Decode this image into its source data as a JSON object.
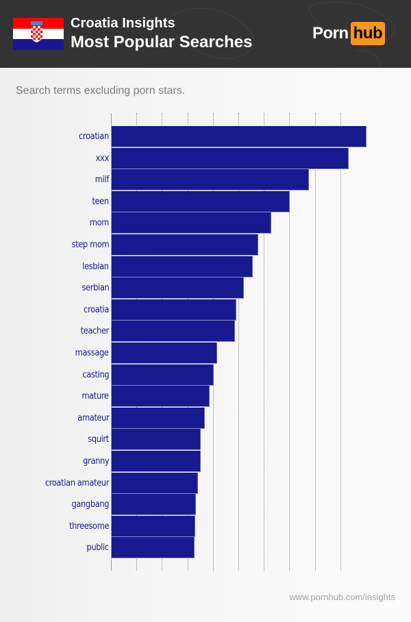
{
  "header": {
    "title_line1": "Croatia Insights",
    "title_line2": "Most Popular Searches",
    "flag_icon": "croatia-flag",
    "logo": {
      "porn": "Porn",
      "hub": "hub",
      "accent_color": "#f7971c"
    }
  },
  "subtitle": "Search terms excluding porn stars.",
  "footer": {
    "url": "www.pornhub.com/insights"
  },
  "colors": {
    "bar": "#18188f",
    "label": "#1a1a8c",
    "header_bg": "#333333"
  },
  "chart_data": {
    "type": "bar",
    "orientation": "horizontal",
    "title": "Most Popular Searches",
    "subtitle": "Search terms excluding porn stars.",
    "xlabel": "",
    "ylabel": "",
    "x_tick_labels": [],
    "grid": true,
    "grid_style": "dotted vertical",
    "units": "relative (gridline units, axis unlabeled)",
    "xlim": [
      0,
      10
    ],
    "categories": [
      "croatian",
      "xxx",
      "milf",
      "teen",
      "mom",
      "step mom",
      "lesbian",
      "serbian",
      "croatia",
      "teacher",
      "massage",
      "casting",
      "mature",
      "amateur",
      "squirt",
      "granny",
      "croatian amateur",
      "gangbang",
      "threesome",
      "public"
    ],
    "values": [
      10.0,
      9.3,
      7.75,
      7.0,
      6.25,
      5.75,
      5.55,
      5.2,
      4.9,
      4.85,
      4.15,
      4.0,
      3.85,
      3.65,
      3.5,
      3.5,
      3.4,
      3.3,
      3.27,
      3.25
    ]
  }
}
